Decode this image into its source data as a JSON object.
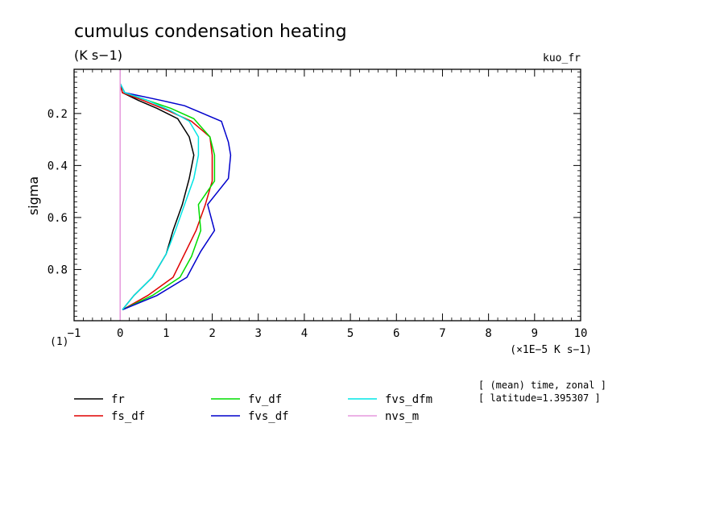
{
  "chart_data": {
    "type": "line",
    "title": "cumulus condensation heating",
    "units": "(K s−1)",
    "variable": "kuo_fr",
    "ylabel": "sigma",
    "xlabel": "(×1E−5 K s−1)",
    "x_axis_note": "(1)",
    "xlim": [
      -1,
      10
    ],
    "ylim": [
      0.997,
      0.03
    ],
    "y_inverted": true,
    "x_ticks": [
      -1,
      0,
      1,
      2,
      3,
      4,
      5,
      6,
      7,
      8,
      9,
      10
    ],
    "x_tick_labels": [
      "−1",
      "0",
      "1",
      "2",
      "3",
      "4",
      "5",
      "6",
      "7",
      "8",
      "9",
      "10"
    ],
    "y_ticks": [
      0.2,
      0.4,
      0.6,
      0.8
    ],
    "y_tick_labels": [
      "0.2",
      "0.4",
      "0.6",
      "0.8"
    ],
    "info_lines": [
      "[ (mean) time, zonal ]",
      "[ latitude=1.395307 ]"
    ],
    "series": [
      {
        "name": "fr",
        "color": "#000000",
        "points": [
          [
            0,
            0.085
          ],
          [
            0.05,
            0.12
          ],
          [
            0.4,
            0.15
          ],
          [
            0.8,
            0.18
          ],
          [
            1.25,
            0.22
          ],
          [
            1.5,
            0.29
          ],
          [
            1.6,
            0.36
          ],
          [
            1.5,
            0.45
          ],
          [
            1.35,
            0.55
          ],
          [
            1.15,
            0.65
          ],
          [
            1.0,
            0.74
          ],
          [
            0.7,
            0.83
          ],
          [
            0.3,
            0.9
          ],
          [
            0.05,
            0.955
          ]
        ]
      },
      {
        "name": "fs_df",
        "color": "#e00000",
        "points": [
          [
            0,
            0.085
          ],
          [
            0.05,
            0.12
          ],
          [
            0.5,
            0.15
          ],
          [
            1.05,
            0.19
          ],
          [
            1.55,
            0.23
          ],
          [
            1.95,
            0.29
          ],
          [
            2.0,
            0.36
          ],
          [
            2.0,
            0.46
          ],
          [
            1.85,
            0.55
          ],
          [
            1.65,
            0.65
          ],
          [
            1.4,
            0.74
          ],
          [
            1.15,
            0.83
          ],
          [
            0.6,
            0.9
          ],
          [
            0.05,
            0.955
          ]
        ]
      },
      {
        "name": "fv_df",
        "color": "#00dd00",
        "points": [
          [
            0,
            0.085
          ],
          [
            0.1,
            0.12
          ],
          [
            0.6,
            0.15
          ],
          [
            1.1,
            0.18
          ],
          [
            1.6,
            0.22
          ],
          [
            1.95,
            0.29
          ],
          [
            2.05,
            0.36
          ],
          [
            2.05,
            0.46
          ],
          [
            1.7,
            0.55
          ],
          [
            1.75,
            0.65
          ],
          [
            1.55,
            0.75
          ],
          [
            1.3,
            0.83
          ],
          [
            0.7,
            0.9
          ],
          [
            0.05,
            0.955
          ]
        ]
      },
      {
        "name": "fvs_df",
        "color": "#0000cc",
        "points": [
          [
            0,
            0.085
          ],
          [
            0.1,
            0.12
          ],
          [
            0.9,
            0.15
          ],
          [
            1.4,
            0.17
          ],
          [
            2.2,
            0.23
          ],
          [
            2.35,
            0.31
          ],
          [
            2.4,
            0.36
          ],
          [
            2.35,
            0.45
          ],
          [
            1.9,
            0.55
          ],
          [
            2.05,
            0.65
          ],
          [
            1.75,
            0.73
          ],
          [
            1.45,
            0.83
          ],
          [
            0.8,
            0.9
          ],
          [
            0.05,
            0.955
          ]
        ]
      },
      {
        "name": "fvs_dfm",
        "color": "#00e5e5",
        "points": [
          [
            0,
            0.085
          ],
          [
            0.1,
            0.12
          ],
          [
            0.6,
            0.15
          ],
          [
            1.1,
            0.19
          ],
          [
            1.5,
            0.23
          ],
          [
            1.7,
            0.29
          ],
          [
            1.7,
            0.36
          ],
          [
            1.6,
            0.45
          ],
          [
            1.4,
            0.55
          ],
          [
            1.2,
            0.65
          ],
          [
            1.0,
            0.74
          ],
          [
            0.7,
            0.83
          ],
          [
            0.3,
            0.9
          ],
          [
            0.05,
            0.955
          ]
        ]
      },
      {
        "name": "nvs_m",
        "color": "#e699dd",
        "points": [
          [
            0,
            0.03
          ],
          [
            0,
            0.997
          ]
        ]
      }
    ]
  }
}
